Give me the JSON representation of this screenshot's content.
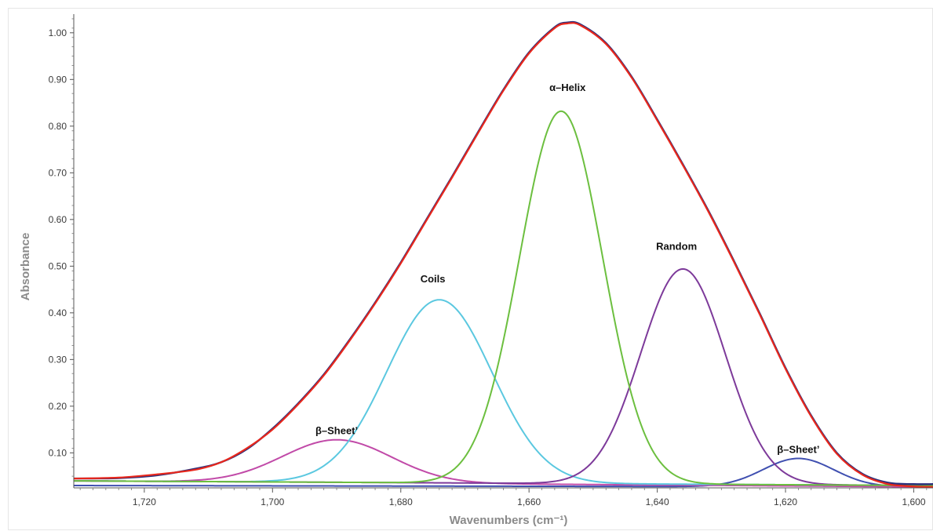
{
  "chart_data": {
    "type": "line",
    "title": "",
    "xlabel": "Wavenumbers (cm⁻¹)",
    "ylabel": "Absorbance",
    "xlim": [
      1731,
      1597
    ],
    "ylim": [
      0.025,
      1.04
    ],
    "x_reversed": true,
    "grid": false,
    "legend": "none",
    "x_ticks": [
      1720,
      1700,
      1680,
      1660,
      1640,
      1620,
      1600
    ],
    "x_tick_labels": [
      "1,720",
      "1,700",
      "1,680",
      "1,660",
      "1,640",
      "1,620",
      "1,600"
    ],
    "y_ticks": [
      0.1,
      0.2,
      0.3,
      0.4,
      0.5,
      0.6,
      0.7,
      0.8,
      0.9,
      1.0
    ],
    "y_tick_labels": [
      "0.10",
      "0.20",
      "0.30",
      "0.40",
      "0.50",
      "0.60",
      "0.70",
      "0.80",
      "0.90",
      "1.00"
    ],
    "series": [
      {
        "key": "spectrum",
        "color": "#2b2f7a",
        "x": [
          1731,
          1724,
          1718,
          1712,
          1708,
          1704,
          1700,
          1696,
          1692,
          1688,
          1684,
          1680,
          1676,
          1672,
          1668,
          1664,
          1660,
          1656,
          1654,
          1652,
          1648,
          1644,
          1640,
          1636,
          1632,
          1628,
          1624,
          1620,
          1616,
          1612,
          1608,
          1604,
          1600,
          1597
        ],
        "y": [
          0.045,
          0.046,
          0.052,
          0.066,
          0.08,
          0.108,
          0.152,
          0.206,
          0.268,
          0.342,
          0.422,
          0.508,
          0.6,
          0.692,
          0.786,
          0.878,
          0.958,
          1.012,
          1.022,
          1.018,
          0.978,
          0.906,
          0.814,
          0.718,
          0.618,
          0.51,
          0.398,
          0.282,
          0.18,
          0.1,
          0.055,
          0.036,
          0.033,
          0.033
        ]
      },
      {
        "key": "fit",
        "color": "#e8271c",
        "x": [
          1731,
          1724,
          1718,
          1712,
          1708,
          1704,
          1700,
          1696,
          1692,
          1688,
          1684,
          1680,
          1676,
          1672,
          1668,
          1664,
          1660,
          1656,
          1654,
          1652,
          1648,
          1644,
          1640,
          1636,
          1632,
          1628,
          1624,
          1620,
          1616,
          1612,
          1608,
          1604,
          1600,
          1597
        ],
        "y": [
          0.045,
          0.047,
          0.054,
          0.064,
          0.08,
          0.11,
          0.15,
          0.204,
          0.266,
          0.34,
          0.42,
          0.506,
          0.598,
          0.69,
          0.784,
          0.876,
          0.956,
          1.01,
          1.02,
          1.016,
          0.976,
          0.904,
          0.812,
          0.716,
          0.616,
          0.508,
          0.396,
          0.28,
          0.178,
          0.098,
          0.053,
          0.033,
          0.028,
          0.027
        ]
      },
      {
        "key": "beta-sheet-high",
        "color": "#c14aa8",
        "peak_x": 1690,
        "peak_y": 0.128,
        "sigma": 8.5,
        "baseline": 0.04,
        "baseline_end": 0.027
      },
      {
        "key": "coils",
        "color": "#5bc8e0",
        "peak_x": 1674,
        "peak_y": 0.428,
        "sigma": 8.2,
        "baseline": 0.04,
        "baseline_end": 0.03
      },
      {
        "key": "alpha-helix",
        "color": "#6cbf3f",
        "peak_x": 1655,
        "peak_y": 0.832,
        "sigma": 6.5,
        "baseline": 0.04,
        "baseline_end": 0.03
      },
      {
        "key": "random",
        "color": "#7d3a9a",
        "peak_x": 1636,
        "peak_y": 0.494,
        "sigma": 6.6,
        "baseline": 0.04,
        "baseline_end": 0.03
      },
      {
        "key": "beta-sheet-low",
        "color": "#3f4fb0",
        "peak_x": 1618,
        "peak_y": 0.088,
        "sigma": 5.5,
        "baseline": 0.03,
        "baseline_end": 0.027
      }
    ],
    "annotations": [
      {
        "text": "α–Helix",
        "x": 1654,
        "y": 0.875
      },
      {
        "text": "Coils",
        "x": 1675,
        "y": 0.465
      },
      {
        "text": "Random",
        "x": 1637,
        "y": 0.535
      },
      {
        "text": "β–Sheet’",
        "x": 1690,
        "y": 0.14
      },
      {
        "text": "β–Sheet’",
        "x": 1618,
        "y": 0.1
      }
    ]
  }
}
